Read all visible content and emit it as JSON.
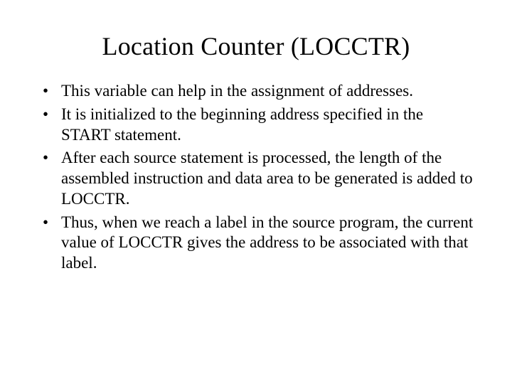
{
  "slide": {
    "title": "Location Counter (LOCCTR)",
    "bullets": [
      "This variable can help in the assignment of addresses.",
      "It is initialized to the beginning address specified in the START statement.",
      "After each source statement is processed, the length of the assembled instruction and data area to be generated is added to LOCCTR.",
      "Thus, when we reach a label in the source program, the current value of LOCCTR gives the address to be associated with that label."
    ],
    "background_color": "#ffffff",
    "text_color": "#000000",
    "title_fontsize": 36,
    "body_fontsize": 23,
    "font_family": "Times New Roman"
  }
}
